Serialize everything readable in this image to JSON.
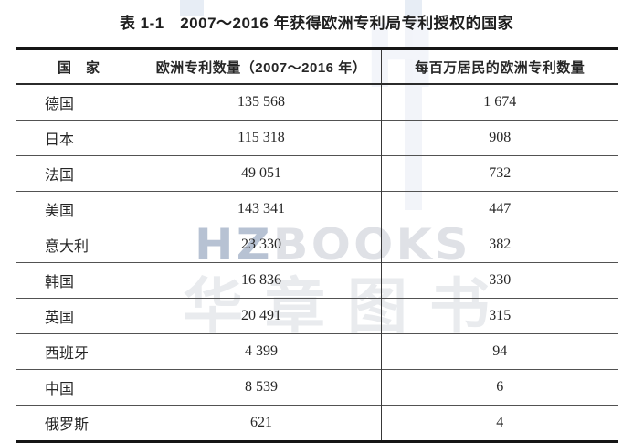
{
  "page": {
    "caption": "表 1-1　2007～2016 年获得欧洲专利局专利授权的国家"
  },
  "watermark": {
    "latin_part1": "HZ",
    "latin_part2": "BOOKS",
    "latin_faint_letter": "H",
    "chinese": "华章图书",
    "band_color": "#e7edf5",
    "latin_color_strong": "#b7c2d3",
    "latin_color_light": "#dfe1e6",
    "chinese_color": "#e9ebee"
  },
  "table": {
    "headers": [
      "国　家",
      "欧洲专利数量（2007～2016 年）",
      "每百万居民的欧洲专利数量"
    ],
    "rows": [
      {
        "country": "德国",
        "patents": "135 568",
        "per_million": "1 674"
      },
      {
        "country": "日本",
        "patents": "115 318",
        "per_million": "908"
      },
      {
        "country": "法国",
        "patents": "49 051",
        "per_million": "732"
      },
      {
        "country": "美国",
        "patents": "143 341",
        "per_million": "447"
      },
      {
        "country": "意大利",
        "patents": "23 330",
        "per_million": "382"
      },
      {
        "country": "韩国",
        "patents": "16 836",
        "per_million": "330"
      },
      {
        "country": "英国",
        "patents": "20 491",
        "per_million": "315"
      },
      {
        "country": "西班牙",
        "patents": "4 399",
        "per_million": "94"
      },
      {
        "country": "中国",
        "patents": "8 539",
        "per_million": "6"
      },
      {
        "country": "俄罗斯",
        "patents": "621",
        "per_million": "4"
      }
    ],
    "border_color_heavy": "#161616",
    "border_color_light": "#525252",
    "text_color": "#262626"
  }
}
